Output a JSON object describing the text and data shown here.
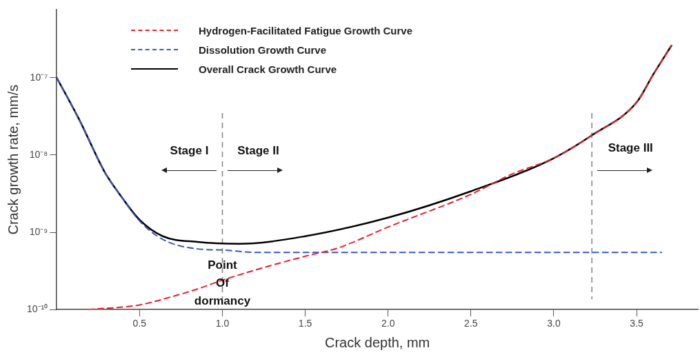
{
  "chart_data": {
    "type": "line",
    "xlabel": "Crack depth, mm",
    "ylabel": "Crack growth rate, mm/s",
    "log": "y",
    "xlim": [
      0,
      3.87
    ],
    "ylim": [
      1e-10,
      7.6e-07
    ],
    "xticks": [
      0.5,
      {
        "value": 1,
        "label": "1.0"
      },
      1.5,
      {
        "value": 2,
        "label": "2.0"
      },
      2.5,
      {
        "value": 3,
        "label": "3.0"
      },
      3.5
    ],
    "yticks": [
      {
        "value": 1e-10,
        "label": "10⁻¹⁰"
      },
      {
        "value": 1e-09,
        "label": "10⁻⁹"
      },
      {
        "value": 1e-08,
        "label": "10⁻⁸"
      },
      {
        "value": 1e-07,
        "label": "10⁻⁷"
      }
    ],
    "grid": false,
    "legend": "top left",
    "marker": "none",
    "series": [
      {
        "name": "Hydrogen-Facilitated Fatigue Growth Curve",
        "color": "#e8202a",
        "line_style": "dashed",
        "x": [
          0.19,
          0.5,
          0.71,
          0.85,
          1.0,
          1.27,
          1.5,
          1.7,
          2.0,
          2.5,
          2.75,
          3.0,
          3.23,
          3.5,
          3.6,
          3.71
        ],
        "values": [
          1e-10,
          1.15e-10,
          1.5e-10,
          1.85e-10,
          2.4e-10,
          3.6e-10,
          4.9e-10,
          6.3e-10,
          1.17e-09,
          3.1e-09,
          5.7e-09,
          9.1e-09,
          1.8e-08,
          4.8e-08,
          1.1e-07,
          2.6e-07
        ]
      },
      {
        "name": "Dissolution Growth Curve",
        "color": "#3a56c8",
        "line_style": "dashed",
        "x": [
          0,
          0.135,
          0.29,
          0.38,
          0.5,
          0.64,
          0.85,
          1.0,
          1.2,
          3.65
        ],
        "values": [
          1e-07,
          2.9e-08,
          6e-09,
          3.1e-09,
          1.4e-09,
          8.1e-10,
          6.1e-10,
          5.9e-10,
          5.5e-10,
          5.5e-10
        ]
      },
      {
        "name": "Overall Crack Growth Curve",
        "color": "#000000",
        "line_style": "solid",
        "x": [
          0,
          0.135,
          0.29,
          0.38,
          0.5,
          0.64,
          0.85,
          1.1,
          1.5,
          2.0,
          2.5,
          3.0,
          3.23,
          3.5,
          3.6,
          3.71
        ],
        "values": [
          1e-07,
          2.9e-08,
          6e-09,
          3.1e-09,
          1.45e-09,
          8.9e-10,
          7.5e-10,
          7.1e-10,
          8.9e-10,
          1.55e-09,
          3.4e-09,
          9.1e-09,
          1.8e-08,
          4.8e-08,
          1.1e-07,
          2.6e-07
        ]
      }
    ],
    "ref_lines": [
      {
        "axis": "x",
        "value": 1.0,
        "color": "#808080",
        "line_style": "dashed"
      },
      {
        "axis": "x",
        "value": 3.23,
        "color": "#808080",
        "line_style": "dashed"
      }
    ],
    "annotations": [
      "Stage I",
      "Stage II",
      "Stage III",
      "Point Of dormancy"
    ]
  }
}
